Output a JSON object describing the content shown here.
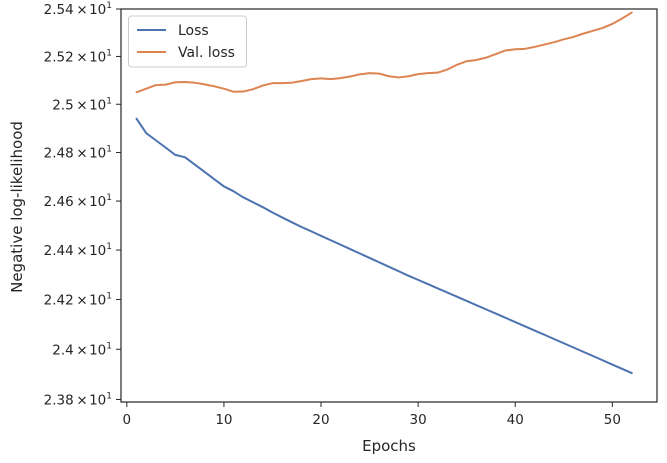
{
  "chart_data": {
    "type": "line",
    "xlabel": "Epochs",
    "ylabel": "Negative log-likelihood",
    "xlim": [
      -0.6,
      54.6
    ],
    "ylim": [
      23.79,
      25.4
    ],
    "y_scale": "log",
    "grid": false,
    "legend_position": "top-left",
    "x_ticks": [
      0,
      10,
      20,
      30,
      40,
      50
    ],
    "x_tick_labels": [
      "0",
      "10",
      "20",
      "30",
      "40",
      "50"
    ],
    "y_ticks": [
      23.8,
      24.0,
      24.2,
      24.4,
      24.6,
      24.8,
      25.0,
      25.2,
      25.4
    ],
    "y_tick_labels": [
      {
        "mantissa": "2.38",
        "base": "10",
        "exp": "1"
      },
      {
        "mantissa": "2.4",
        "base": "10",
        "exp": "1"
      },
      {
        "mantissa": "2.42",
        "base": "10",
        "exp": "1"
      },
      {
        "mantissa": "2.44",
        "base": "10",
        "exp": "1"
      },
      {
        "mantissa": "2.46",
        "base": "10",
        "exp": "1"
      },
      {
        "mantissa": "2.48",
        "base": "10",
        "exp": "1"
      },
      {
        "mantissa": "2.5",
        "base": "10",
        "exp": "1"
      },
      {
        "mantissa": "2.52",
        "base": "10",
        "exp": "1"
      },
      {
        "mantissa": "2.54",
        "base": "10",
        "exp": "1"
      }
    ],
    "x": [
      1,
      2,
      3,
      4,
      5,
      6,
      7,
      8,
      9,
      10,
      11,
      12,
      13,
      14,
      15,
      16,
      17,
      18,
      19,
      20,
      21,
      22,
      23,
      24,
      25,
      26,
      27,
      28,
      29,
      30,
      31,
      32,
      33,
      34,
      35,
      36,
      37,
      38,
      39,
      40,
      41,
      42,
      43,
      44,
      45,
      46,
      47,
      48,
      49,
      50,
      51,
      52
    ],
    "series": [
      {
        "name": "Loss",
        "color": "#4c72b0",
        "values": [
          24.94,
          24.88,
          24.85,
          24.82,
          24.79,
          24.78,
          24.75,
          24.72,
          24.69,
          24.66,
          24.64,
          24.615,
          24.595,
          24.575,
          24.553,
          24.533,
          24.513,
          24.494,
          24.476,
          24.458,
          24.44,
          24.422,
          24.404,
          24.386,
          24.368,
          24.35,
          24.332,
          24.314,
          24.296,
          24.279,
          24.262,
          24.245,
          24.228,
          24.211,
          24.194,
          24.177,
          24.16,
          24.143,
          24.126,
          24.109,
          24.092,
          24.075,
          24.058,
          24.041,
          24.024,
          24.007,
          23.99,
          23.973,
          23.956,
          23.939,
          23.922,
          23.905
        ]
      },
      {
        "name": "Val. loss",
        "color": "#dd8452",
        "values": [
          25.05,
          25.065,
          25.08,
          25.082,
          25.092,
          25.093,
          25.09,
          25.083,
          25.075,
          25.065,
          25.052,
          25.053,
          25.063,
          25.078,
          25.088,
          25.088,
          25.09,
          25.097,
          25.105,
          25.108,
          25.105,
          25.109,
          25.116,
          25.125,
          25.13,
          25.128,
          25.117,
          25.112,
          25.117,
          25.126,
          25.13,
          25.132,
          25.145,
          25.165,
          25.18,
          25.185,
          25.195,
          25.21,
          25.225,
          25.23,
          25.232,
          25.24,
          25.25,
          25.26,
          25.272,
          25.282,
          25.296,
          25.308,
          25.32,
          25.337,
          25.36,
          25.385
        ]
      }
    ]
  }
}
